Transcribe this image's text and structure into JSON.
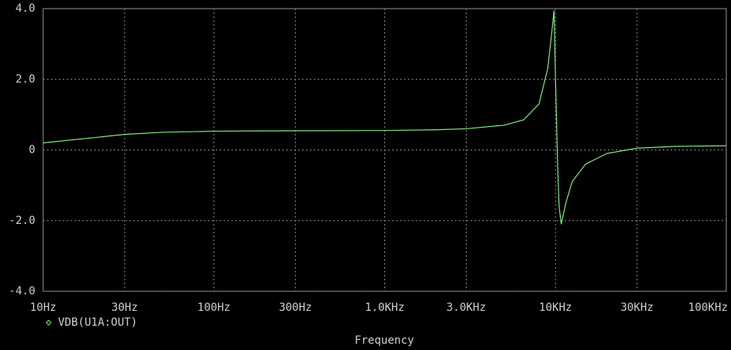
{
  "chart_data": {
    "type": "line",
    "xlabel": "Frequency",
    "x_scale": "log",
    "grid": true,
    "x": [
      10,
      20,
      30,
      50,
      100,
      200,
      1000,
      2000,
      3000,
      5000,
      6500,
      8000,
      9000,
      9500,
      9800,
      10000,
      10300,
      10500,
      10800,
      11500,
      12500,
      15000,
      20000,
      30000,
      50000,
      100000
    ],
    "series": [
      {
        "name": "VDB(U1A:OUT)",
        "color": "#7fe87f",
        "values": [
          0.2,
          0.35,
          0.44,
          0.5,
          0.53,
          0.54,
          0.55,
          0.57,
          0.6,
          0.7,
          0.85,
          1.3,
          2.3,
          3.3,
          3.95,
          2.0,
          -0.5,
          -1.6,
          -2.1,
          -1.5,
          -0.9,
          -0.4,
          -0.1,
          0.05,
          0.1,
          0.12
        ]
      }
    ],
    "xlim": [
      10,
      100000
    ],
    "xticks": [
      {
        "value": 10,
        "label": "10Hz"
      },
      {
        "value": 30,
        "label": "30Hz"
      },
      {
        "value": 100,
        "label": "100Hz"
      },
      {
        "value": 300,
        "label": "300Hz"
      },
      {
        "value": 1000,
        "label": "1.0KHz"
      },
      {
        "value": 3000,
        "label": "3.0KHz"
      },
      {
        "value": 10000,
        "label": "10KHz"
      },
      {
        "value": 30000,
        "label": "30KHz"
      },
      {
        "value": 100000,
        "label": "100KHz"
      }
    ],
    "ylim": [
      -4,
      4
    ],
    "yticks": [
      {
        "value": 4,
        "label": "4.0"
      },
      {
        "value": 2,
        "label": "2.0"
      },
      0,
      {
        "value": -2,
        "label": "-2.0"
      },
      {
        "value": -4,
        "label": "-4.0"
      }
    ]
  }
}
